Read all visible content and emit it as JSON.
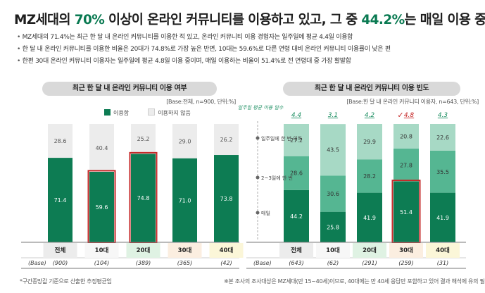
{
  "colors": {
    "green_dark": "#0d7c53",
    "green_mid": "#55b692",
    "green_light": "#a7d9c5",
    "gray": "#ececec",
    "highlight": "#c62828"
  },
  "title": {
    "part1": "MZ세대의 ",
    "highlight1": "70%",
    "part2": " 이상이 온라인 커뮤니티를 이용하고 있고, 그 중 ",
    "highlight2": "44.2%",
    "part3": "는 매일 이용 중"
  },
  "bullets": [
    "MZ세대의 71.4%는 최근 한 달 내 온라인 커뮤니티를 이용한 적 있고, 온라인 커뮤니티 이용 경험자는 일주일에 평균 4.4일 이용함",
    "한 달 내 온라인 커뮤니티를 이용한 비율은 20대가 74.8%로 가장 높은 반면, 10대는 59.6%로 다른 연령 대비 온라인 커뮤니티 이용률이 낮은 편",
    "한편 30대 온라인 커뮤니티 이용자는 일주일에 평균 4.8일 이용 중이며, 매일 이용하는 비율이 51.4%로 전 연령대 중 가장 활발함"
  ],
  "chart1": {
    "title": "최근 한 달 내 온라인 커뮤니티 이용 여부",
    "base_note": "[Base:전체, n=900, 단위:%]",
    "legend": [
      {
        "label": "이용함",
        "key": "green_dark"
      },
      {
        "label": "이용하지 않음",
        "key": "gray"
      }
    ]
  },
  "chart2": {
    "title": "최근 한 달 내 온라인 커뮤니티 이용 빈도",
    "base_note": "[Base:한 달 내 온라인 커뮤니티 이용자, n=643, 단위:%]",
    "avg_label": "일주일 평균 이용 일수",
    "check_mark": "✓"
  },
  "chart_data": [
    {
      "type": "bar",
      "stacked": true,
      "title": "최근 한 달 내 온라인 커뮤니티 이용 여부",
      "categories": [
        "전체",
        "10대",
        "20대",
        "30대",
        "40대"
      ],
      "base_label": "(Base)",
      "bases": [
        "(900)",
        "(104)",
        "(389)",
        "(365)",
        "(42)"
      ],
      "ylim": [
        0,
        100
      ],
      "series": [
        {
          "name": "이용함",
          "values": [
            71.4,
            59.6,
            74.8,
            71.0,
            73.8
          ]
        },
        {
          "name": "이용하지 않음",
          "values": [
            28.6,
            40.4,
            25.2,
            29.0,
            26.2
          ]
        }
      ],
      "highlighted": [
        "10대",
        "20대"
      ]
    },
    {
      "type": "bar",
      "stacked": true,
      "title": "최근 한 달 내 온라인 커뮤니티 이용 빈도",
      "categories": [
        "전체",
        "10대",
        "20대",
        "30대",
        "40대"
      ],
      "base_label": "(Base)",
      "bases": [
        "(643)",
        "(62)",
        "(291)",
        "(259)",
        "(31)"
      ],
      "ylim": [
        0,
        100
      ],
      "averages": [
        "4.4",
        "3.1",
        "4.2",
        "4.8",
        "4.3"
      ],
      "series": [
        {
          "name": "매일",
          "values": [
            44.2,
            25.8,
            41.9,
            51.4,
            41.9
          ]
        },
        {
          "name": "2~3일에 한 번",
          "values": [
            28.6,
            30.6,
            28.2,
            27.8,
            35.5
          ]
        },
        {
          "name": "일주일에 한 번 이하",
          "values": [
            27.2,
            43.5,
            29.9,
            20.8,
            22.6
          ]
        }
      ],
      "highlighted": [
        "30대"
      ]
    }
  ],
  "footnotes": {
    "left": "*구간종망값 기준으로 산출한 추정평균임",
    "right": "※본 조사의 조사대상은 MZ세대(만 15~40세)이므로, 40대에는 만 40세 응답만 포함하고 있어 결과 해석에 유의 필요"
  }
}
